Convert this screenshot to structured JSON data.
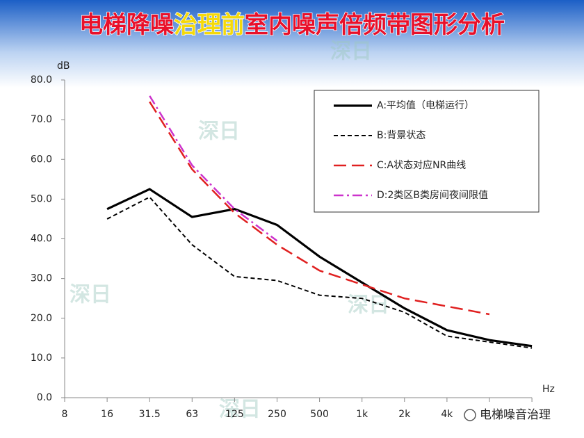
{
  "chart_data": {
    "type": "line",
    "title_segments": [
      "电梯降噪",
      "治理前",
      "室内噪声倍频带图形分析"
    ],
    "y_unit": "dB",
    "x_unit": "Hz",
    "watermark": "深日",
    "footer": "电梯噪音治理",
    "categories": [
      "8",
      "16",
      "31.5",
      "63",
      "125",
      "250",
      "500",
      "1k",
      "2k",
      "4k",
      null,
      null
    ],
    "ylim": [
      0,
      80
    ],
    "yticks": [
      {
        "value": 0,
        "label": "0.0"
      },
      {
        "value": 10,
        "label": "10.0"
      },
      {
        "value": 20,
        "label": "20.0"
      },
      {
        "value": 30,
        "label": "30.0"
      },
      {
        "value": 40,
        "label": "40.0"
      },
      {
        "value": 50,
        "label": "50.0"
      },
      {
        "value": 60,
        "label": "60.0"
      },
      {
        "value": 70,
        "label": "70.0"
      },
      {
        "value": 80,
        "label": "80.0"
      }
    ],
    "series": [
      {
        "name": "A:平均值（电梯运行）",
        "color": "#000000",
        "values": [
          null,
          47.5,
          52.5,
          45.5,
          47.5,
          43.5,
          35.5,
          29,
          22.5,
          17,
          14.5,
          13
        ]
      },
      {
        "name": "B:背景状态",
        "color": "#000000",
        "values": [
          null,
          45,
          50.5,
          38.5,
          30.5,
          29.5,
          25.8,
          25,
          21.5,
          15.5,
          14,
          12.5
        ]
      },
      {
        "name": "C:A状态对应NR曲线",
        "color": "#e02020",
        "values": [
          null,
          null,
          74.5,
          57.5,
          46.5,
          38.5,
          32,
          28.5,
          25,
          23,
          21,
          null
        ]
      },
      {
        "name": "D:2类区B类房间夜间限值",
        "color": "#cc33cc",
        "values": [
          null,
          null,
          76,
          58.5,
          47.5,
          39.5,
          null,
          null,
          null,
          null,
          null,
          null
        ]
      }
    ]
  }
}
